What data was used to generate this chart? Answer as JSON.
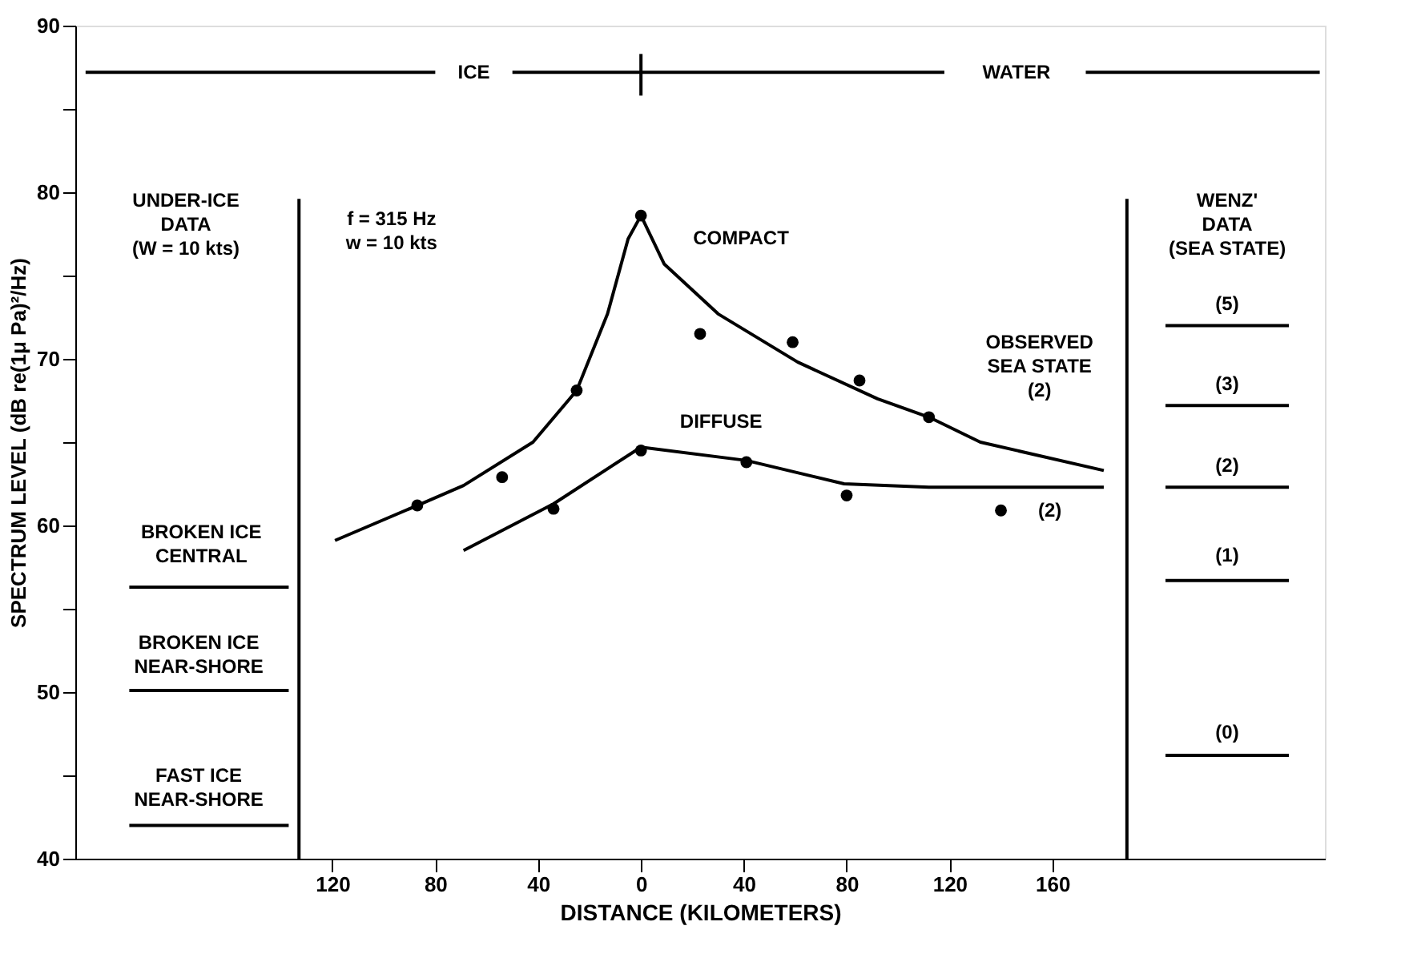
{
  "chart_data": {
    "type": "line",
    "xlabel": "DISTANCE (KILOMETERS)",
    "ylabel": "SPECTRUM LEVEL (dB re(1μ Pa)²/Hz)",
    "xlim": [
      -220,
      266
    ],
    "ylim": [
      40,
      90
    ],
    "xticks": [
      {
        "value": -120,
        "label": "120"
      },
      {
        "value": -80,
        "label": "80"
      },
      {
        "value": -40,
        "label": "40"
      },
      0,
      40,
      80,
      120,
      160
    ],
    "yticks": [
      40,
      {
        "value": 45,
        "label": null
      },
      50,
      {
        "value": 55,
        "label": null
      },
      60,
      {
        "value": 65,
        "label": null
      },
      70,
      {
        "value": 75,
        "label": null
      },
      80,
      {
        "value": 85,
        "label": null
      },
      90
    ],
    "grid": false,
    "series": [
      {
        "name": "COMPACT",
        "color": "#000000",
        "x": [
          -119,
          -87,
          -69,
          -42,
          -25,
          -13,
          -5,
          0,
          9,
          30,
          61,
          92,
          112,
          132,
          180
        ],
        "values": [
          59.1,
          61.2,
          62.4,
          65.0,
          68.1,
          72.7,
          77.2,
          78.6,
          75.7,
          72.7,
          69.8,
          67.6,
          66.5,
          65.0,
          63.3
        ]
      },
      {
        "name": "DIFFUSE",
        "color": "#000000",
        "x": [
          -69,
          -34,
          0,
          41,
          79,
          112,
          180
        ],
        "values": [
          58.5,
          61.3,
          64.7,
          63.9,
          62.5,
          62.3,
          62.3
        ]
      },
      {
        "type": "scatter",
        "marker": "circle",
        "color": "#000000",
        "x": [
          -87,
          -54,
          -25,
          0,
          23,
          59,
          85,
          112
        ],
        "values": [
          61.2,
          62.9,
          68.1,
          78.6,
          71.5,
          71.0,
          68.7,
          66.5
        ]
      },
      {
        "type": "scatter",
        "marker": "circle",
        "color": "#000000",
        "x": [
          -34,
          0,
          41,
          80,
          140
        ],
        "values": [
          61.0,
          64.5,
          63.8,
          61.8,
          60.9
        ]
      },
      {
        "color": "#000000",
        "x": [
          -216,
          -80,
          -78,
          -50,
          118,
          120,
          173,
          264
        ],
        "values": [
          87.2,
          87.2,
          null,
          87.2,
          87.2,
          null,
          87.2,
          87.2
        ]
      },
      {
        "color": "#000000",
        "x": [
          0,
          0
        ],
        "values": [
          88.3,
          85.8
        ]
      },
      {
        "color": "#000000",
        "x": [
          -133,
          -133
        ],
        "values": [
          79.6,
          40
        ]
      },
      {
        "color": "#000000",
        "x": [
          189,
          189
        ],
        "values": [
          79.6,
          40
        ]
      },
      {
        "color": "#000000",
        "x": [
          -199,
          -137
        ],
        "values": [
          56.3,
          56.3
        ]
      },
      {
        "color": "#000000",
        "x": [
          -199,
          -137
        ],
        "values": [
          50.1,
          50.1
        ]
      },
      {
        "color": "#000000",
        "x": [
          -199,
          -137
        ],
        "values": [
          42.0,
          42.0
        ]
      },
      {
        "color": "#000000",
        "x": [
          204,
          252
        ],
        "values": [
          72.0,
          72.0
        ]
      },
      {
        "color": "#000000",
        "x": [
          204,
          252
        ],
        "values": [
          67.2,
          67.2
        ]
      },
      {
        "color": "#000000",
        "x": [
          204,
          252
        ],
        "values": [
          62.3,
          62.3
        ]
      },
      {
        "color": "#000000",
        "x": [
          204,
          252
        ],
        "values": [
          56.7,
          56.7
        ]
      },
      {
        "color": "#000000",
        "x": [
          204,
          252
        ],
        "values": [
          46.2,
          46.2
        ]
      }
    ],
    "annotations": [
      "ICE",
      "WATER",
      "f = 315 Hz\nw = 10 kts",
      "UNDER-ICE\nDATA\n(W = 10 kts)",
      "BROKEN ICE\nCENTRAL",
      "BROKEN ICE\nNEAR-SHORE",
      "FAST ICE\nNEAR-SHORE",
      "WENZ'\nDATA\n(SEA STATE)",
      "(5)",
      "(3)",
      "(2)",
      "(1)",
      "(0)",
      "OBSERVED\nSEA STATE\n(2)",
      "(2)"
    ]
  }
}
